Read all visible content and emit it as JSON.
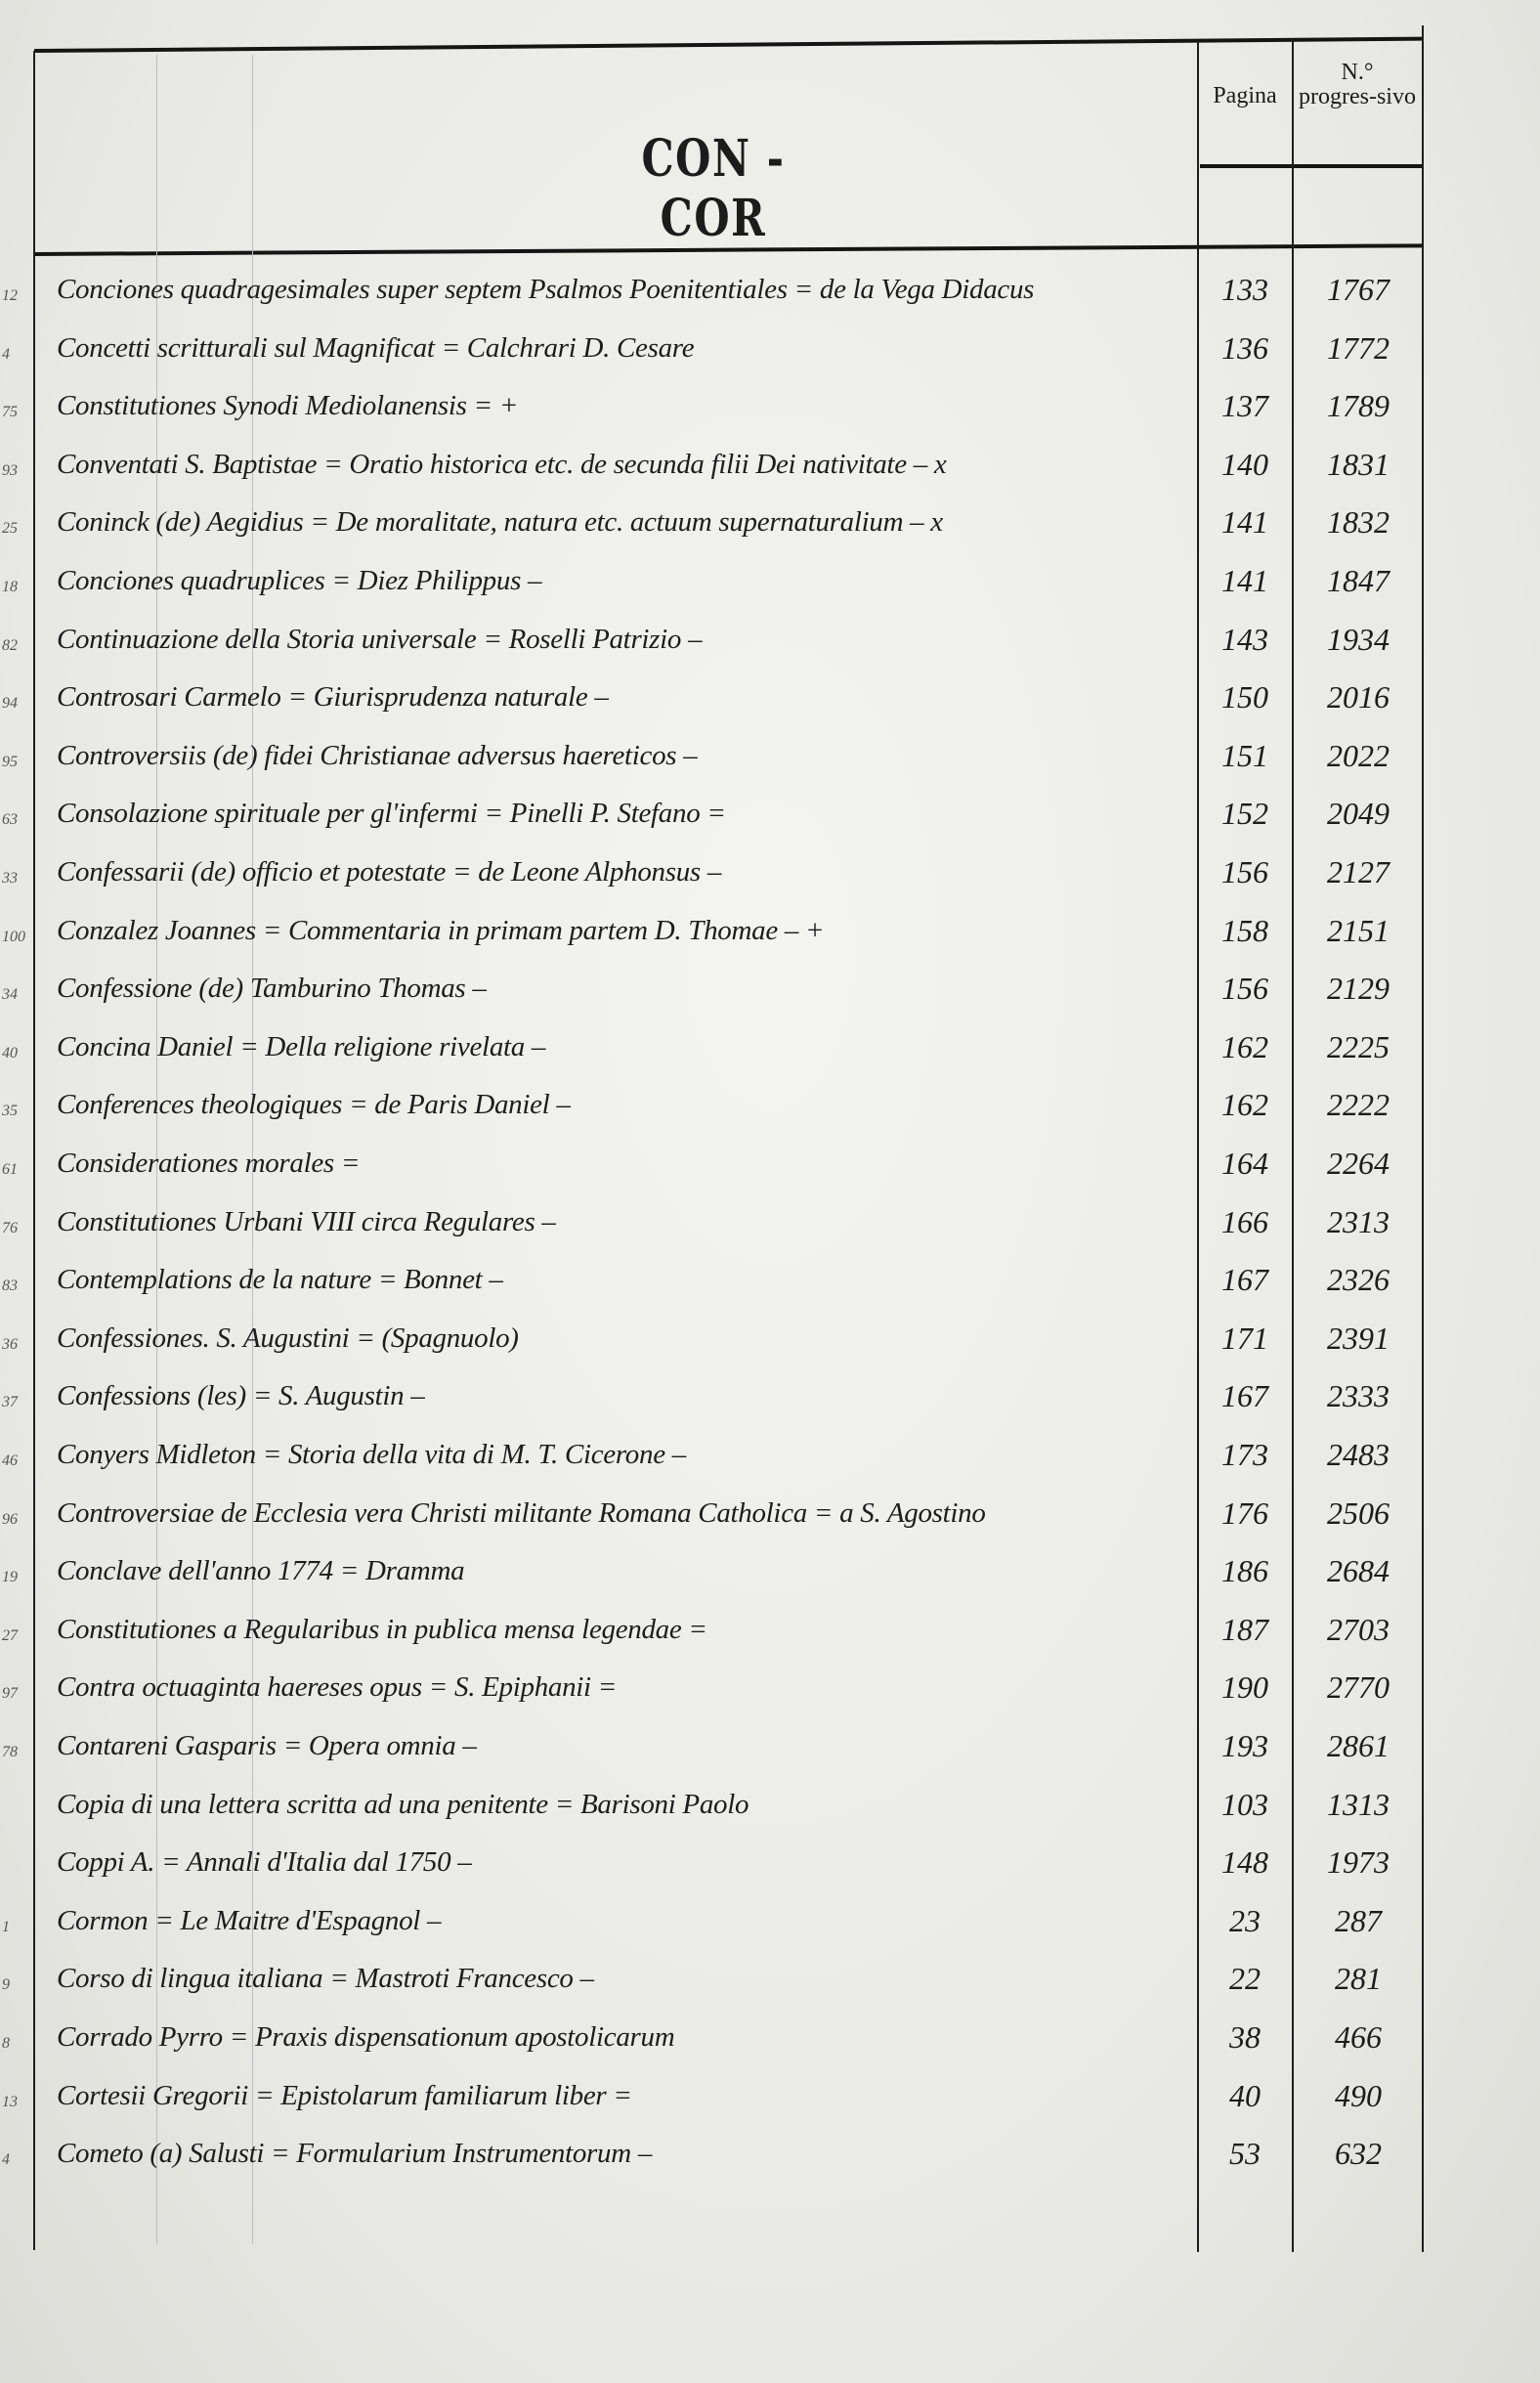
{
  "header": {
    "title": "CON - COR",
    "col_pagina": "Pagina",
    "col_progressivo": "N.° progres-sivo"
  },
  "rows": [
    {
      "margin": "12",
      "entry": "Conciones quadragesimales super septem Psalmos Poenitentiales = de la Vega Didacus",
      "pagina": "133",
      "progressivo": "1767"
    },
    {
      "margin": "4",
      "entry": "Concetti scritturali sul Magnificat = Calchrari D. Cesare",
      "pagina": "136",
      "progressivo": "1772"
    },
    {
      "margin": "75",
      "entry": "Constitutiones Synodi Mediolanensis =   +",
      "pagina": "137",
      "progressivo": "1789"
    },
    {
      "margin": "93",
      "entry": "Conventati S. Baptistae = Oratio historica etc. de secunda filii Dei nativitate – x",
      "pagina": "140",
      "progressivo": "1831"
    },
    {
      "margin": "25",
      "entry": "Coninck (de) Aegidius = De moralitate, natura etc. actuum supernaturalium –  x",
      "pagina": "141",
      "progressivo": "1832"
    },
    {
      "margin": "18",
      "entry": "Conciones quadruplices = Diez Philippus –",
      "pagina": "141",
      "progressivo": "1847"
    },
    {
      "margin": "82",
      "entry": "Continuazione della Storia universale = Roselli Patrizio –",
      "pagina": "143",
      "progressivo": "1934"
    },
    {
      "margin": "94",
      "entry": "Controsari Carmelo = Giurisprudenza naturale –",
      "pagina": "150",
      "progressivo": "2016"
    },
    {
      "margin": "95",
      "entry": "Controversiis (de) fidei Christianae adversus haereticos –",
      "pagina": "151",
      "progressivo": "2022"
    },
    {
      "margin": "63",
      "entry": "Consolazione spirituale per gl'infermi = Pinelli P. Stefano =",
      "pagina": "152",
      "progressivo": "2049"
    },
    {
      "margin": "33",
      "entry": "Confessarii (de) officio et potestate = de Leone Alphonsus –",
      "pagina": "156",
      "progressivo": "2127"
    },
    {
      "margin": "100",
      "entry": "Conzalez Joannes = Commentaria in primam partem D. Thomae –   +",
      "pagina": "158",
      "progressivo": "2151"
    },
    {
      "margin": "34",
      "entry": "Confessione (de) Tamburino Thomas –",
      "pagina": "156",
      "progressivo": "2129"
    },
    {
      "margin": "40",
      "entry": "Concina Daniel = Della religione rivelata –",
      "pagina": "162",
      "progressivo": "2225"
    },
    {
      "margin": "35",
      "entry": "Conferences theologiques = de Paris Daniel –",
      "pagina": "162",
      "progressivo": "2222"
    },
    {
      "margin": "61",
      "entry": "Considerationes morales =",
      "pagina": "164",
      "progressivo": "2264"
    },
    {
      "margin": "76",
      "entry": "Constitutiones Urbani VIII circa Regulares –",
      "pagina": "166",
      "progressivo": "2313"
    },
    {
      "margin": "83",
      "entry": "Contemplations de la nature = Bonnet –",
      "pagina": "167",
      "progressivo": "2326"
    },
    {
      "margin": "36",
      "entry": "Confessiones. S. Augustini = (Spagnuolo)",
      "pagina": "171",
      "progressivo": "2391"
    },
    {
      "margin": "37",
      "entry": "Confessions (les) = S. Augustin –",
      "pagina": "167",
      "progressivo": "2333"
    },
    {
      "margin": "46",
      "entry": "Conyers Midleton = Storia della vita di M. T. Cicerone –",
      "pagina": "173",
      "progressivo": "2483"
    },
    {
      "margin": "96",
      "entry": "Controversiae de Ecclesia vera Christi militante Romana Catholica = a S. Agostino",
      "pagina": "176",
      "progressivo": "2506"
    },
    {
      "margin": "19",
      "entry": "Conclave dell'anno 1774 = Dramma",
      "pagina": "186",
      "progressivo": "2684"
    },
    {
      "margin": "27",
      "entry": "Constitutiones a Regularibus in publica mensa legendae =",
      "pagina": "187",
      "progressivo": "2703"
    },
    {
      "margin": "97",
      "entry": "Contra octuaginta haereses opus = S. Epiphanii =",
      "pagina": "190",
      "progressivo": "2770"
    },
    {
      "margin": "78",
      "entry": "Contareni Gasparis = Opera omnia –",
      "pagina": "193",
      "progressivo": "2861"
    },
    {
      "margin": "",
      "entry": "Copia di una lettera scritta ad una penitente = Barisoni Paolo",
      "pagina": "103",
      "progressivo": "1313"
    },
    {
      "margin": "",
      "entry": "Coppi A. = Annali d'Italia dal 1750 –",
      "pagina": "148",
      "progressivo": "1973"
    },
    {
      "margin": "1",
      "entry": "Cormon = Le Maitre d'Espagnol –",
      "pagina": "23",
      "progressivo": "287"
    },
    {
      "margin": "9",
      "entry": "Corso di lingua italiana = Mastroti Francesco –",
      "pagina": "22",
      "progressivo": "281"
    },
    {
      "margin": "8",
      "entry": "Corrado Pyrro = Praxis dispensationum apostolicarum",
      "pagina": "38",
      "progressivo": "466"
    },
    {
      "margin": "13",
      "entry": "Cortesii Gregorii = Epistolarum familiarum liber =",
      "pagina": "40",
      "progressivo": "490"
    },
    {
      "margin": "4",
      "entry": "Cometo (a) Salusti = Formularium Instrumentorum –",
      "pagina": "53",
      "progressivo": "632"
    }
  ]
}
